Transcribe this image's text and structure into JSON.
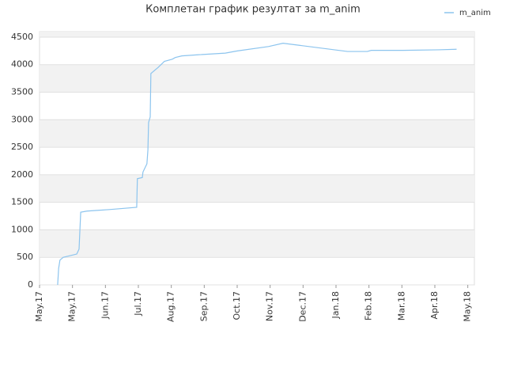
{
  "chart_data": {
    "type": "line",
    "title": "Комплетан график резултат за m_anim",
    "x": [
      0.55,
      0.58,
      0.62,
      0.72,
      1.13,
      1.2,
      1.25,
      1.44,
      2.16,
      2.95,
      2.97,
      3.12,
      3.14,
      3.26,
      3.29,
      3.31,
      3.36,
      3.38,
      3.6,
      3.79,
      4.03,
      4.12,
      4.32,
      4.8,
      5.64,
      6.0,
      6.95,
      7.39,
      7.91,
      9.35,
      9.95,
      10.07,
      11.03,
      12.11,
      12.66
    ],
    "series": [
      {
        "name": "m_anim",
        "color": "#8cc4ee",
        "values": [
          0,
          300,
          450,
          500,
          560,
          650,
          1320,
          1340,
          1370,
          1410,
          1930,
          1950,
          2050,
          2200,
          2450,
          2950,
          3050,
          3840,
          3950,
          4060,
          4100,
          4130,
          4160,
          4180,
          4210,
          4250,
          4330,
          4390,
          4350,
          4240,
          4240,
          4260,
          4260,
          4270,
          4280
        ]
      }
    ],
    "xlim": [
      0,
      13.2
    ],
    "xticks": [
      {
        "value": 0,
        "label": "May.17"
      },
      {
        "value": 1,
        "label": "May.17"
      },
      {
        "value": 2,
        "label": "Jun.17"
      },
      {
        "value": 3,
        "label": "Jul.17"
      },
      {
        "value": 4,
        "label": "Aug.17"
      },
      {
        "value": 5,
        "label": "Sep.17"
      },
      {
        "value": 6,
        "label": "Oct.17"
      },
      {
        "value": 7,
        "label": "Nov.17"
      },
      {
        "value": 8,
        "label": "Dec.17"
      },
      {
        "value": 9,
        "label": "Jan.18"
      },
      {
        "value": 10,
        "label": "Feb.18"
      },
      {
        "value": 11,
        "label": "Mar.18"
      },
      {
        "value": 12,
        "label": "Apr.18"
      },
      {
        "value": 13,
        "label": "May.18"
      }
    ],
    "ylim": [
      0,
      4600
    ],
    "yticks": [
      0,
      500,
      1000,
      1500,
      2000,
      2500,
      3000,
      3500,
      4000,
      4500
    ],
    "grid": true,
    "legend": "top-right"
  }
}
